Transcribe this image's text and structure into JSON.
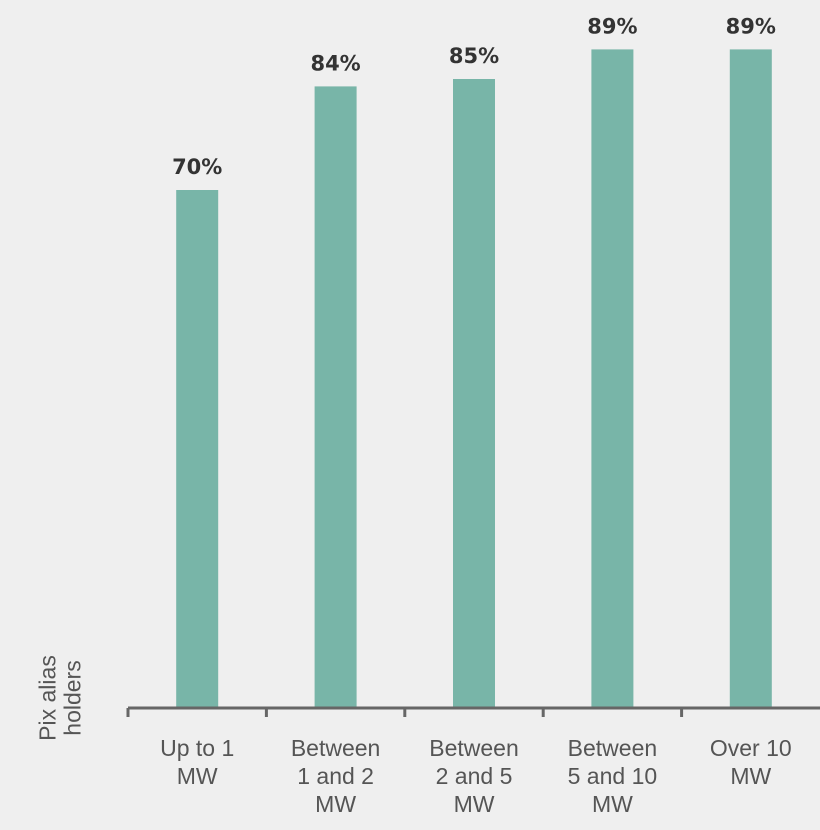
{
  "chart_data": {
    "type": "bar",
    "y_label": "Pix alias holders",
    "categories": [
      "Up to 1 MW",
      "Between 1 and 2 MW",
      "Between 2 and 5 MW",
      "Between 5 and 10 MW",
      "Over 10 MW"
    ],
    "values": [
      70,
      84,
      85,
      89,
      89
    ],
    "value_labels": [
      "70%",
      "84%",
      "85%",
      "89%",
      "89%"
    ],
    "color": "#78b5a8",
    "ylim": [
      0,
      100
    ]
  }
}
